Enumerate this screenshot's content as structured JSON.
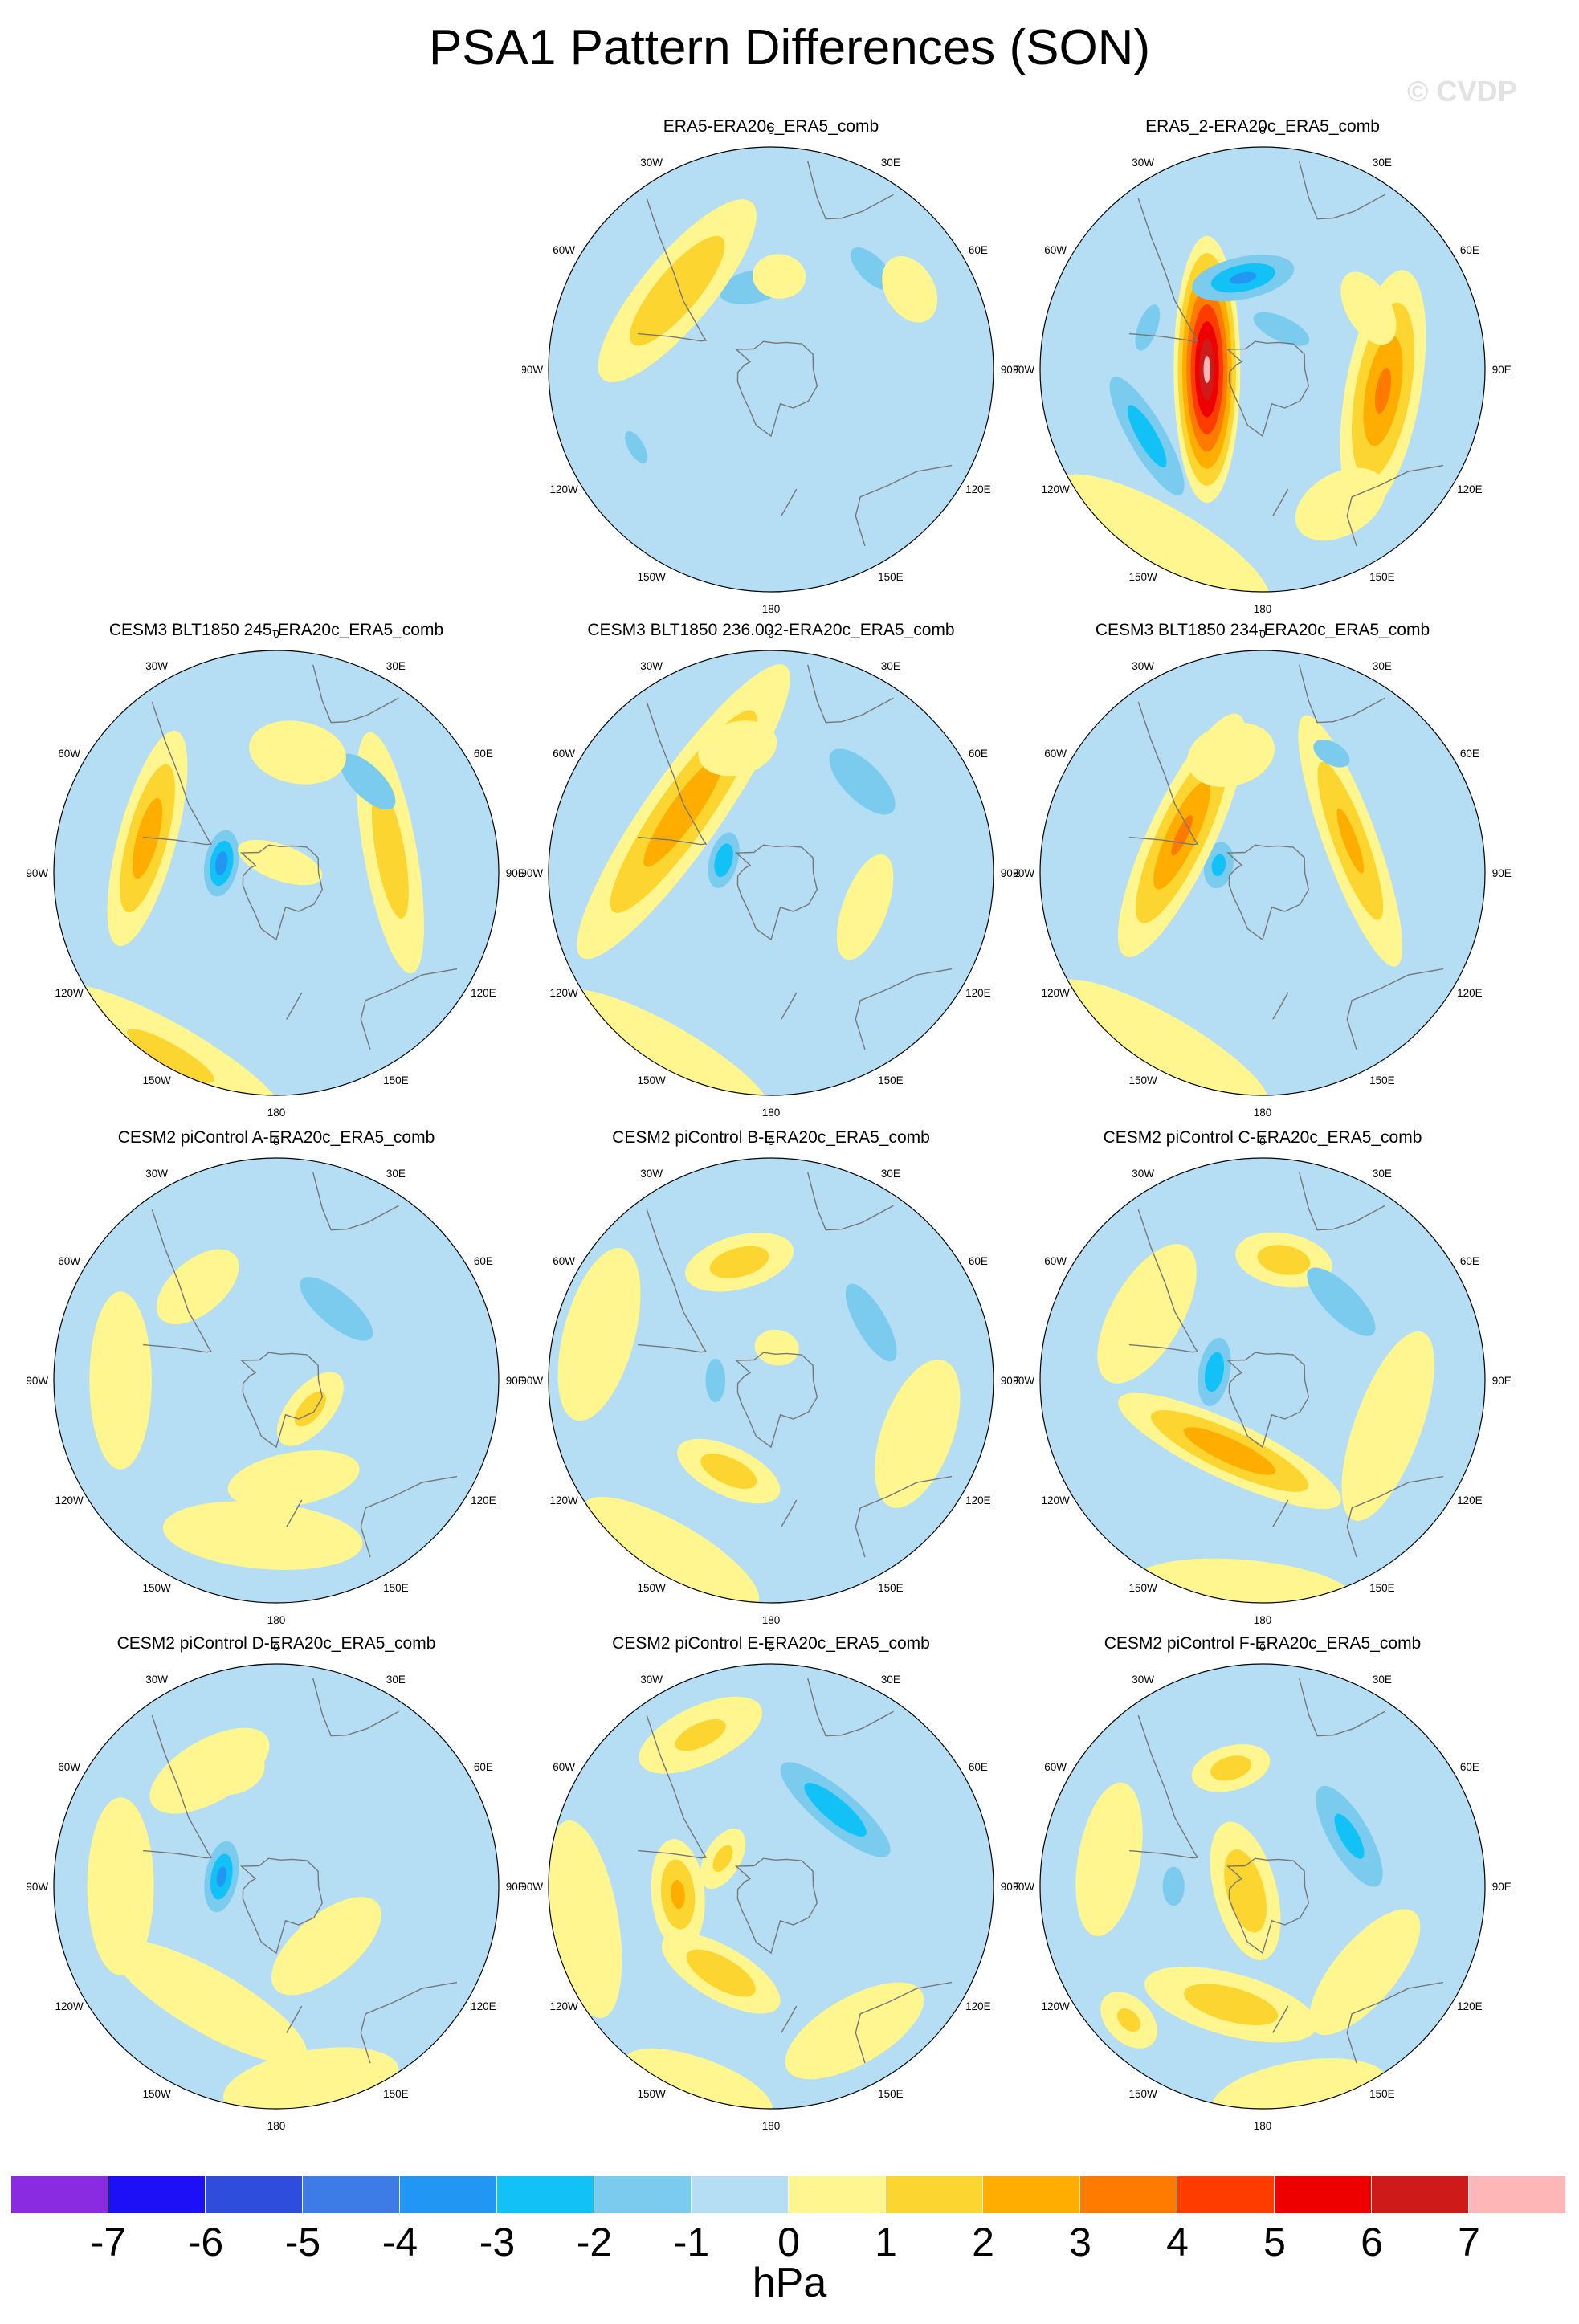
{
  "figure": {
    "title": "PSA1 Pattern Differences (SON)",
    "watermark": "© CVDP"
  },
  "panels": [
    {
      "title": "ERA5-ERA20c_ERA5_comb",
      "blobs": [
        [
          -12,
          0.38,
          0.3,
          0.14,
          -1.5
        ],
        [
          -50,
          0.55,
          0.52,
          0.16,
          1.9
        ],
        [
          45,
          0.64,
          0.26,
          0.12,
          -1.3
        ],
        [
          60,
          0.72,
          0.16,
          0.11,
          0.6
        ],
        [
          -120,
          0.7,
          0.18,
          0.08,
          -1.2
        ],
        [
          5,
          0.42,
          0.12,
          0.1,
          0.3
        ]
      ]
    },
    {
      "title": "ERA5_2-ERA20c_ERA5_comb",
      "blobs": [
        [
          -90,
          0.25,
          0.6,
          0.15,
          7.2
        ],
        [
          -12,
          0.42,
          0.32,
          0.13,
          -3.1
        ],
        [
          100,
          0.55,
          0.55,
          0.17,
          3.1
        ],
        [
          -120,
          0.6,
          0.45,
          0.12,
          -2.5
        ],
        [
          25,
          0.2,
          0.25,
          0.1,
          -1.6
        ],
        [
          60,
          0.55,
          0.18,
          0.1,
          0.9
        ],
        [
          -70,
          0.55,
          0.2,
          0.08,
          -1.6
        ],
        [
          -150,
          0.9,
          0.55,
          0.16,
          0.8
        ],
        [
          150,
          0.7,
          0.22,
          0.14,
          0.6
        ]
      ]
    },
    {
      "title": "CESM3 BLT1850 245-ERA20c_ERA5_comb",
      "blobs": [
        [
          -80,
          0.25,
          0.2,
          0.1,
          -3.5
        ],
        [
          -75,
          0.6,
          0.5,
          0.13,
          2.6
        ],
        [
          80,
          0.52,
          0.55,
          0.12,
          1.6
        ],
        [
          45,
          0.58,
          0.28,
          0.12,
          -1.8
        ],
        [
          -150,
          0.95,
          0.6,
          0.14,
          1.0
        ],
        [
          10,
          0.55,
          0.22,
          0.14,
          0.8
        ],
        [
          20,
          0.05,
          0.2,
          0.08,
          0.4
        ]
      ]
    },
    {
      "title": "CESM3 BLT1850 236.002-ERA20c_ERA5_comb",
      "blobs": [
        [
          -75,
          0.22,
          0.18,
          0.09,
          -2.9
        ],
        [
          -55,
          0.48,
          0.8,
          0.17,
          2.6
        ],
        [
          45,
          0.58,
          0.32,
          0.14,
          -1.9
        ],
        [
          -15,
          0.58,
          0.18,
          0.12,
          0.8
        ],
        [
          -150,
          0.95,
          0.55,
          0.14,
          0.9
        ],
        [
          110,
          0.45,
          0.25,
          0.1,
          0.4
        ]
      ]
    },
    {
      "title": "CESM3 BLT1850 234-ERA20c_ERA5_comb",
      "blobs": [
        [
          -80,
          0.2,
          0.16,
          0.1,
          -2.3
        ],
        [
          -65,
          0.4,
          0.6,
          0.15,
          3.0
        ],
        [
          70,
          0.42,
          0.6,
          0.12,
          2.1
        ],
        [
          30,
          0.62,
          0.18,
          0.1,
          -1.4
        ],
        [
          -15,
          0.55,
          0.2,
          0.14,
          0.9
        ],
        [
          -150,
          0.9,
          0.55,
          0.14,
          0.8
        ],
        [
          145,
          0.6,
          0.25,
          0.1,
          -0.5
        ]
      ]
    },
    {
      "title": "CESM2 piControl A-ERA20c_ERA5_comb",
      "blobs": [
        [
          40,
          0.42,
          0.35,
          0.13,
          -1.8
        ],
        [
          -40,
          0.55,
          0.22,
          0.12,
          0.8
        ],
        [
          -90,
          0.7,
          0.4,
          0.14,
          0.7
        ],
        [
          -120,
          0.5,
          0.2,
          0.12,
          -0.8
        ],
        [
          130,
          0.2,
          0.2,
          0.1,
          1.3
        ],
        [
          -175,
          0.7,
          0.45,
          0.15,
          0.7
        ],
        [
          170,
          0.45,
          0.3,
          0.12,
          0.6
        ],
        [
          -15,
          0.2,
          0.1,
          0.07,
          -0.4
        ]
      ]
    },
    {
      "title": "CESM2 piControl B-ERA20c_ERA5_comb",
      "blobs": [
        [
          -15,
          0.55,
          0.25,
          0.12,
          1.6
        ],
        [
          60,
          0.52,
          0.35,
          0.12,
          -1.7
        ],
        [
          -155,
          0.45,
          0.25,
          0.11,
          1.6
        ],
        [
          -90,
          0.25,
          0.22,
          0.1,
          -1.2
        ],
        [
          -75,
          0.8,
          0.4,
          0.16,
          0.9
        ],
        [
          110,
          0.7,
          0.35,
          0.16,
          0.7
        ],
        [
          -150,
          0.9,
          0.45,
          0.14,
          0.8
        ],
        [
          10,
          0.15,
          0.1,
          0.08,
          0.5
        ]
      ]
    },
    {
      "title": "CESM2 piControl C-ERA20c_ERA5_comb",
      "blobs": [
        [
          -80,
          0.22,
          0.22,
          0.1,
          -2.8
        ],
        [
          -155,
          0.35,
          0.55,
          0.13,
          2.8
        ],
        [
          10,
          0.55,
          0.22,
          0.12,
          1.6
        ],
        [
          45,
          0.5,
          0.35,
          0.13,
          -1.8
        ],
        [
          -60,
          0.6,
          0.35,
          0.16,
          0.9
        ],
        [
          110,
          0.6,
          0.45,
          0.15,
          0.9
        ],
        [
          160,
          0.6,
          0.2,
          0.1,
          -0.8
        ],
        [
          -175,
          0.95,
          0.5,
          0.14,
          0.8
        ]
      ]
    },
    {
      "title": "CESM2 piControl D-ERA20c_ERA5_comb",
      "blobs": [
        [
          -80,
          0.25,
          0.22,
          0.1,
          -3.2
        ],
        [
          -20,
          0.55,
          0.14,
          0.1,
          1.3
        ],
        [
          -30,
          0.6,
          0.3,
          0.14,
          0.8
        ],
        [
          -90,
          0.7,
          0.4,
          0.15,
          0.7
        ],
        [
          -150,
          0.6,
          0.5,
          0.14,
          0.8
        ],
        [
          60,
          0.5,
          0.18,
          0.12,
          -0.9
        ],
        [
          140,
          0.35,
          0.3,
          0.14,
          0.7
        ],
        [
          170,
          0.9,
          0.4,
          0.15,
          0.6
        ]
      ]
    },
    {
      "title": "CESM2 piControl E-ERA20c_ERA5_comb",
      "blobs": [
        [
          40,
          0.45,
          0.45,
          0.13,
          -2.7
        ],
        [
          -95,
          0.42,
          0.25,
          0.12,
          2.1
        ],
        [
          -150,
          0.45,
          0.3,
          0.12,
          1.8
        ],
        [
          -25,
          0.75,
          0.3,
          0.13,
          1.1
        ],
        [
          -100,
          0.85,
          0.45,
          0.15,
          0.8
        ],
        [
          -160,
          0.95,
          0.35,
          0.12,
          0.6
        ],
        [
          150,
          0.75,
          0.35,
          0.15,
          0.6
        ],
        [
          -60,
          0.25,
          0.15,
          0.08,
          1.2
        ]
      ]
    },
    {
      "title": "CESM2 piControl F-ERA20c_ERA5_comb",
      "blobs": [
        [
          -105,
          0.08,
          0.32,
          0.14,
          1.9
        ],
        [
          -15,
          0.55,
          0.18,
          0.1,
          1.5
        ],
        [
          60,
          0.45,
          0.4,
          0.14,
          -2.2
        ],
        [
          -90,
          0.4,
          0.16,
          0.09,
          -1.6
        ],
        [
          -80,
          0.7,
          0.35,
          0.14,
          0.8
        ],
        [
          -165,
          0.55,
          0.4,
          0.14,
          1.6
        ],
        [
          130,
          0.6,
          0.35,
          0.14,
          0.8
        ],
        [
          170,
          0.95,
          0.4,
          0.15,
          0.7
        ],
        [
          -135,
          0.85,
          0.15,
          0.1,
          1.1
        ]
      ]
    }
  ],
  "map": {
    "projection": "south-polar stereographic",
    "longitude_labels": [
      "0",
      "30E",
      "60E",
      "90E",
      "120E",
      "150E",
      "180",
      "150W",
      "120W",
      "90W",
      "60W",
      "30W"
    ]
  },
  "colorbar": {
    "units": "hPa",
    "tick_labels": [
      "-7",
      "-6",
      "-5",
      "-4",
      "-3",
      "-2",
      "-1",
      "0",
      "1",
      "2",
      "3",
      "4",
      "5",
      "6",
      "7"
    ],
    "colors": [
      "#8a2be2",
      "#1e10f6",
      "#2e4ddd",
      "#3d7be6",
      "#2196f3",
      "#12c1f5",
      "#7bcbef",
      "#b5ddf3",
      "#fff68f",
      "#fdd530",
      "#ffae00",
      "#ff7b00",
      "#ff3c00",
      "#ee0000",
      "#cf1a1a",
      "#ffb6b6"
    ]
  }
}
